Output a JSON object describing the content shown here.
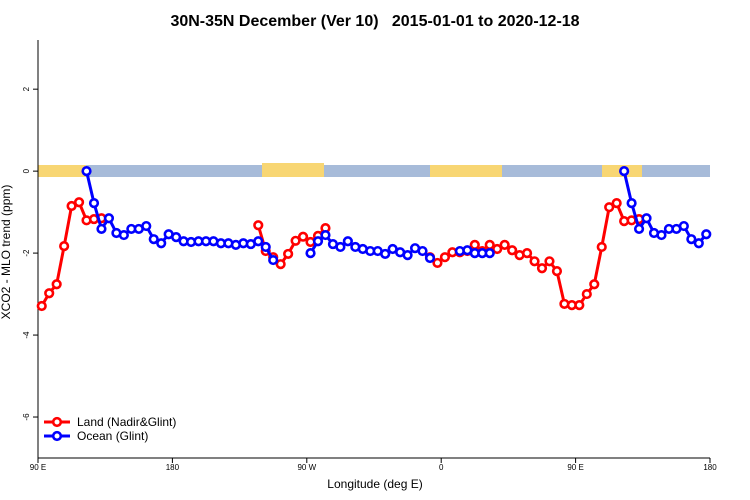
{
  "chart_data": {
    "type": "line",
    "title": "30N-35N December (Ver 10)   2015-01-01 to 2020-12-18",
    "x_label": "Longitude (deg E)",
    "y_label": "XCO2 - MLO trend (ppm)",
    "x": [
      92.5,
      97.5,
      102.5,
      107.5,
      112.5,
      117.5,
      122.5,
      127.5,
      132.5,
      137.5,
      142.5,
      147.5,
      152.5,
      157.5,
      162.5,
      167.5,
      172.5,
      177.5,
      182.5,
      187.5,
      192.5,
      197.5,
      202.5,
      207.5,
      212.5,
      217.5,
      222.5,
      227.5,
      232.5,
      237.5,
      242.5,
      247.5,
      252.5,
      257.5,
      262.5,
      267.5,
      272.5,
      277.5,
      282.5,
      287.5,
      292.5,
      297.5,
      302.5,
      307.5,
      312.5,
      317.5,
      322.5,
      327.5,
      332.5,
      337.5,
      342.5,
      347.5,
      352.5,
      357.5,
      362.5,
      367.5,
      372.5,
      377.5,
      382.5,
      387.5,
      392.5,
      397.5,
      402.5,
      407.5,
      412.5,
      417.5,
      422.5,
      427.5,
      432.5,
      437.5,
      442.5,
      447.5,
      452.5,
      457.5,
      462.5,
      467.5,
      472.5,
      477.5,
      482.5,
      487.5,
      492.5,
      497.5,
      502.5,
      507.5,
      512.5,
      517.5,
      522.5,
      527.5,
      532.5,
      537.5
    ],
    "series": [
      {
        "name": "Land (Nadir&Glint)",
        "color": "#ff0000",
        "values": [
          -3.29,
          -2.98,
          -2.76,
          -1.83,
          -0.85,
          -0.76,
          -1.2,
          -1.17,
          -1.15,
          null,
          null,
          null,
          null,
          null,
          null,
          null,
          null,
          null,
          null,
          null,
          null,
          null,
          null,
          null,
          null,
          null,
          null,
          null,
          null,
          -1.32,
          -1.95,
          -2.1,
          -2.27,
          -2.02,
          -1.7,
          -1.6,
          -1.73,
          -1.58,
          -1.39,
          null,
          null,
          null,
          null,
          null,
          null,
          null,
          null,
          null,
          null,
          null,
          null,
          null,
          -2.1,
          -2.24,
          -2.1,
          -1.98,
          -1.98,
          -1.95,
          -1.8,
          -1.95,
          -1.8,
          -1.9,
          -1.8,
          -1.93,
          -2.05,
          -2.0,
          -2.2,
          -2.37,
          -2.2,
          -2.44,
          -3.24,
          -3.27,
          -3.27,
          -3.0,
          -2.76,
          -1.85,
          -0.88,
          -0.78,
          -1.22,
          -1.2,
          -1.17,
          null,
          null,
          null,
          null,
          null,
          null,
          null,
          null,
          null
        ]
      },
      {
        "name": "Ocean (Glint)",
        "color": "#0000ff",
        "values": [
          null,
          null,
          null,
          null,
          null,
          null,
          0,
          -0.78,
          -1.41,
          -1.15,
          -1.51,
          -1.56,
          -1.41,
          -1.41,
          -1.34,
          -1.66,
          -1.76,
          -1.54,
          -1.61,
          -1.71,
          -1.73,
          -1.71,
          -1.71,
          -1.71,
          -1.76,
          -1.76,
          -1.8,
          -1.76,
          -1.78,
          -1.71,
          -1.85,
          -2.17,
          null,
          null,
          null,
          null,
          -2.0,
          -1.71,
          -1.56,
          -1.78,
          -1.85,
          -1.71,
          -1.85,
          -1.9,
          -1.95,
          -1.95,
          -2.02,
          -1.9,
          -1.98,
          -2.05,
          -1.88,
          -1.95,
          -2.12,
          null,
          null,
          null,
          -1.95,
          -1.93,
          -2.0,
          -2.0,
          -2.0,
          null,
          null,
          null,
          null,
          null,
          null,
          null,
          null,
          null,
          null,
          null,
          null,
          null,
          null,
          null,
          null,
          null,
          0,
          -0.78,
          -1.41,
          -1.15,
          -1.51,
          -1.56,
          -1.41,
          -1.41,
          -1.34,
          -1.66,
          -1.76,
          -1.54
        ]
      }
    ],
    "xlim": [
      90,
      540
    ],
    "xticks": [
      {
        "value": 90,
        "label": "90 E"
      },
      180,
      {
        "value": 270,
        "label": "90 W"
      },
      {
        "value": 360,
        "label": "0"
      },
      {
        "value": 450,
        "label": "90 E"
      },
      {
        "value": 540,
        "label": "180"
      }
    ],
    "ylim": [
      -7,
      3.2
    ],
    "yticks": [
      -6,
      -4,
      -2,
      0,
      2
    ],
    "legend": "bottom-left"
  }
}
